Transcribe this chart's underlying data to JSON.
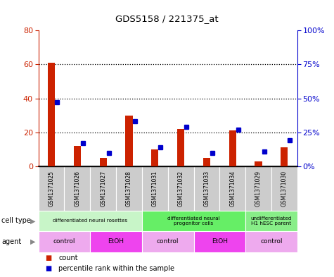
{
  "title": "GDS5158 / 221375_at",
  "samples": [
    "GSM1371025",
    "GSM1371026",
    "GSM1371027",
    "GSM1371028",
    "GSM1371031",
    "GSM1371032",
    "GSM1371033",
    "GSM1371034",
    "GSM1371029",
    "GSM1371030"
  ],
  "counts": [
    61,
    12,
    5,
    30,
    10,
    22,
    5,
    21,
    3,
    11
  ],
  "percentiles": [
    47,
    17,
    10,
    33,
    14,
    29,
    10,
    27,
    11,
    19
  ],
  "ylim_left": [
    0,
    80
  ],
  "ylim_right": [
    0,
    100
  ],
  "yticks_left": [
    0,
    20,
    40,
    60,
    80
  ],
  "yticks_right": [
    0,
    25,
    50,
    75,
    100
  ],
  "ytick_labels_right": [
    "0%",
    "25%",
    "50%",
    "75%",
    "100%"
  ],
  "cell_type_groups": [
    {
      "label": "differentiated neural rosettes",
      "start": 0,
      "end": 3,
      "color": "#c8f5c8"
    },
    {
      "label": "differentiated neural\nprogenitor cells",
      "start": 4,
      "end": 7,
      "color": "#66ee66"
    },
    {
      "label": "undifferentiated\nH1 hESC parent",
      "start": 8,
      "end": 9,
      "color": "#88ee88"
    }
  ],
  "agent_groups": [
    {
      "label": "control",
      "start": 0,
      "end": 1,
      "color": "#eeaaee"
    },
    {
      "label": "EtOH",
      "start": 2,
      "end": 3,
      "color": "#ee44ee"
    },
    {
      "label": "control",
      "start": 4,
      "end": 5,
      "color": "#eeaaee"
    },
    {
      "label": "EtOH",
      "start": 6,
      "end": 7,
      "color": "#ee44ee"
    },
    {
      "label": "control",
      "start": 8,
      "end": 9,
      "color": "#eeaaee"
    }
  ],
  "bar_color": "#cc2200",
  "marker_color": "#0000cc",
  "sample_bg_color": "#cccccc",
  "gridline_ticks": [
    20,
    40,
    60
  ],
  "fig_width": 4.75,
  "fig_height": 3.93,
  "dpi": 100
}
